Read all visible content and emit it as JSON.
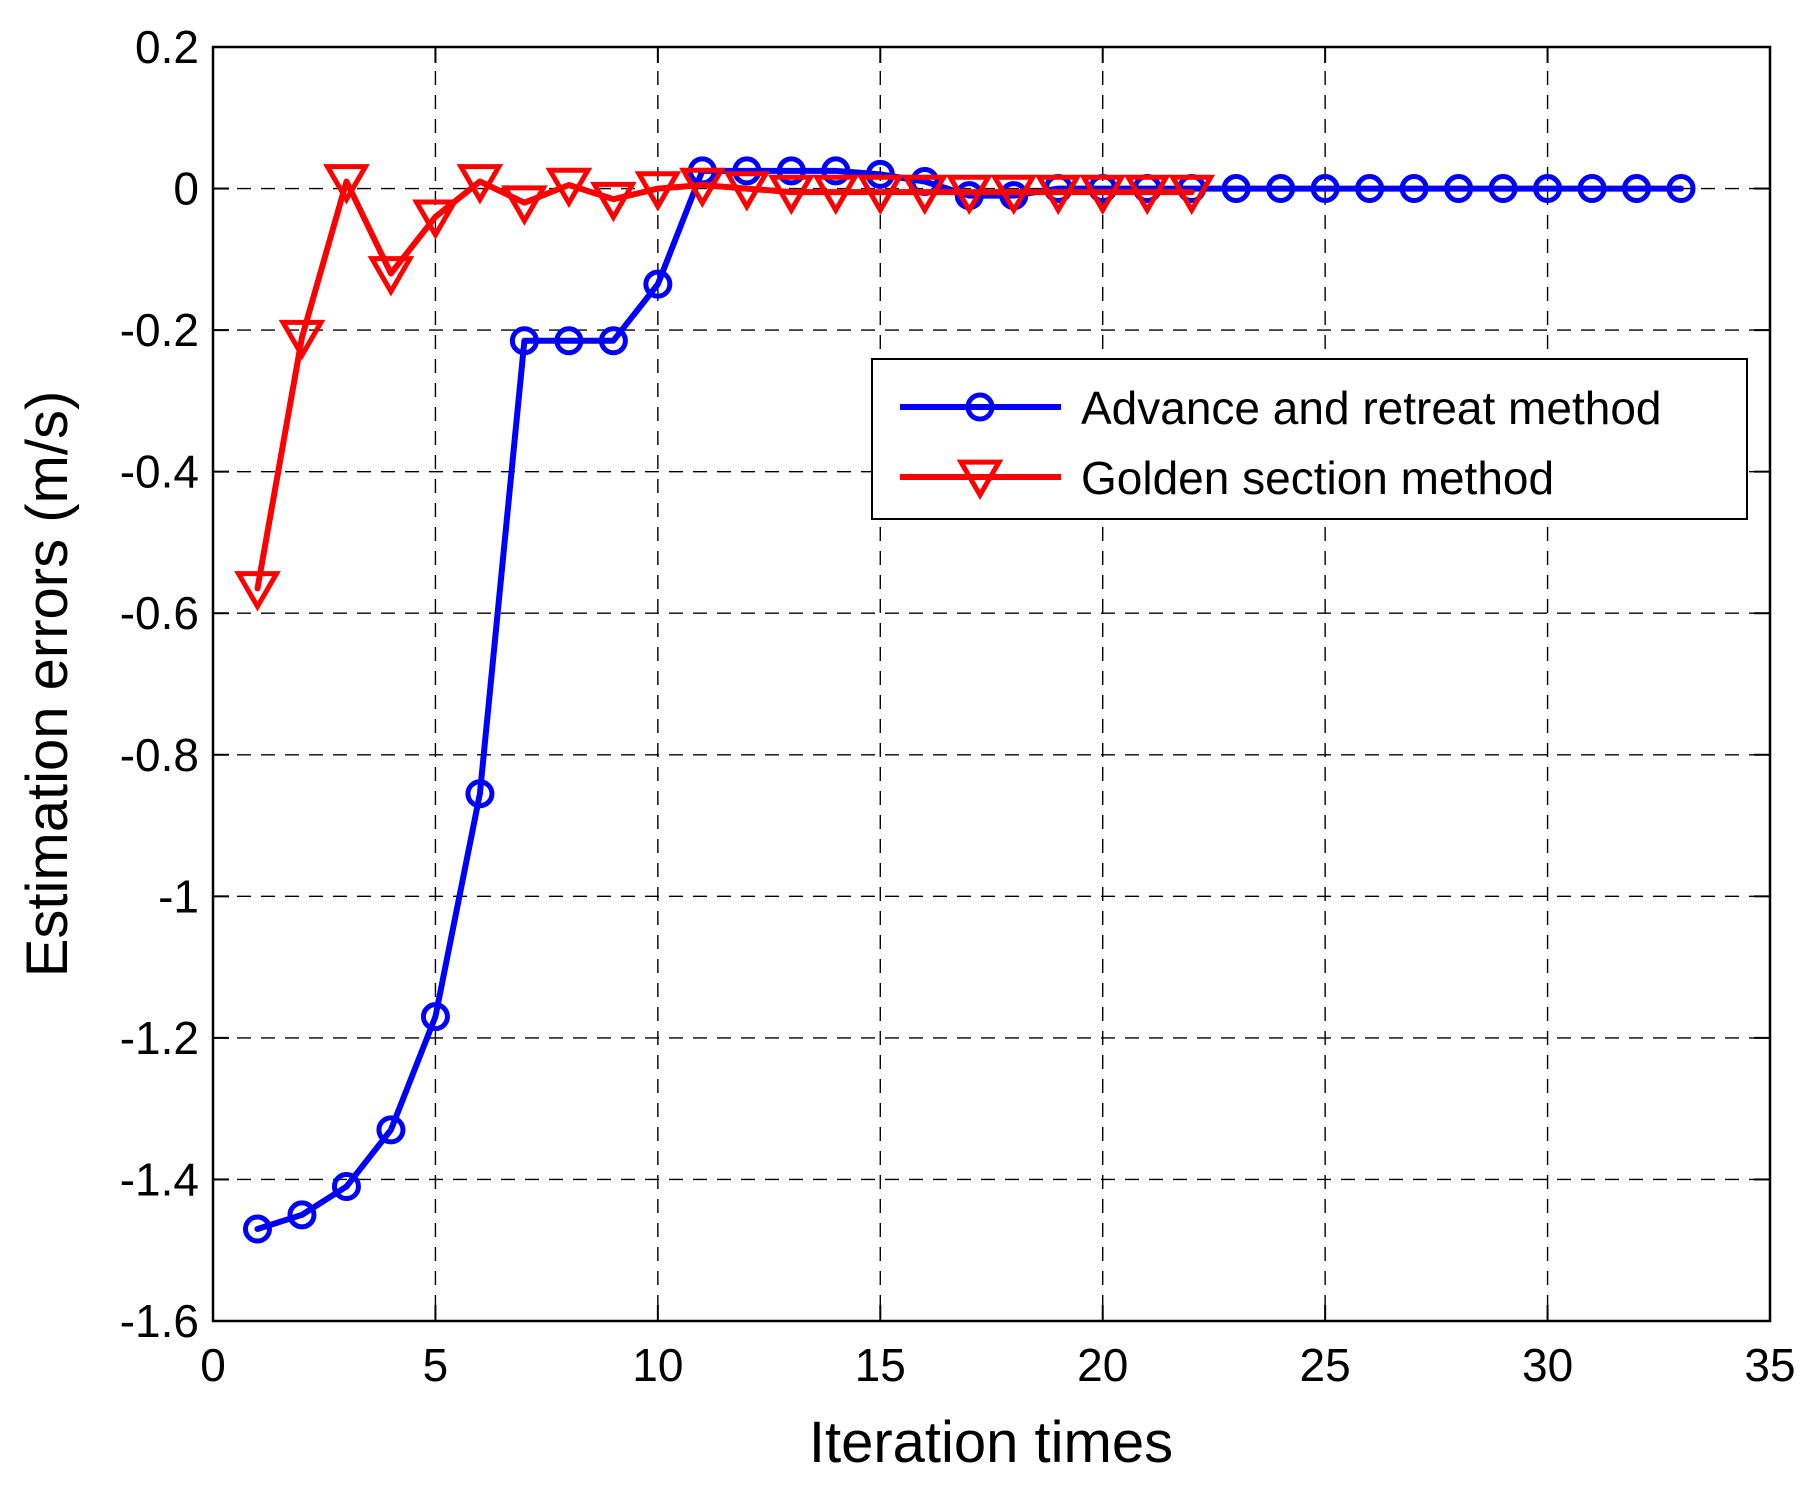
{
  "chart_data": {
    "type": "line",
    "title": "",
    "xlabel": "Iteration times",
    "ylabel": "Estimation errors (m/s)",
    "xlim": [
      0,
      35
    ],
    "ylim": [
      -1.6,
      0.2
    ],
    "xticks": [
      0,
      5,
      10,
      15,
      20,
      25,
      30,
      35
    ],
    "yticks": [
      0.2,
      0,
      -0.2,
      -0.4,
      -0.6,
      -0.8,
      -1,
      -1.2,
      -1.4,
      -1.6
    ],
    "xtick_labels": [
      "0",
      "5",
      "10",
      "15",
      "20",
      "25",
      "30",
      "35"
    ],
    "ytick_labels": [
      "0.2",
      "0",
      "-0.2",
      "-0.4",
      "-0.6",
      "-0.8",
      "-1",
      "-1.2",
      "-1.4",
      "-1.6"
    ],
    "grid": true,
    "legend_position": "upper-right",
    "series": [
      {
        "name": "Advance and retreat method",
        "color": "#0000ff",
        "marker": "circle",
        "x": [
          1,
          2,
          3,
          4,
          5,
          6,
          7,
          8,
          9,
          10,
          11,
          12,
          13,
          14,
          15,
          16,
          17,
          18,
          19,
          20,
          21,
          22,
          23,
          24,
          25,
          26,
          27,
          28,
          29,
          30,
          31,
          32,
          33
        ],
        "y": [
          -1.47,
          -1.45,
          -1.41,
          -1.33,
          -1.17,
          -0.855,
          -0.215,
          -0.215,
          -0.215,
          -0.135,
          0.025,
          0.025,
          0.025,
          0.025,
          0.02,
          0.01,
          -0.01,
          -0.01,
          0,
          0,
          0,
          0,
          0,
          0,
          0,
          0,
          0,
          0,
          0,
          0,
          0,
          0,
          0
        ]
      },
      {
        "name": "Golden section method",
        "color": "#ff0000",
        "marker": "triangle-down",
        "x": [
          1,
          2,
          3,
          4,
          5,
          6,
          7,
          8,
          9,
          10,
          11,
          12,
          13,
          14,
          15,
          16,
          17,
          18,
          19,
          20,
          21,
          22
        ],
        "y": [
          -0.565,
          -0.21,
          0.01,
          -0.12,
          -0.04,
          0.01,
          -0.02,
          0.005,
          -0.015,
          0,
          0.005,
          0,
          -0.005,
          -0.005,
          -0.005,
          -0.005,
          -0.005,
          -0.005,
          -0.005,
          -0.005,
          -0.005,
          -0.005
        ]
      }
    ]
  }
}
